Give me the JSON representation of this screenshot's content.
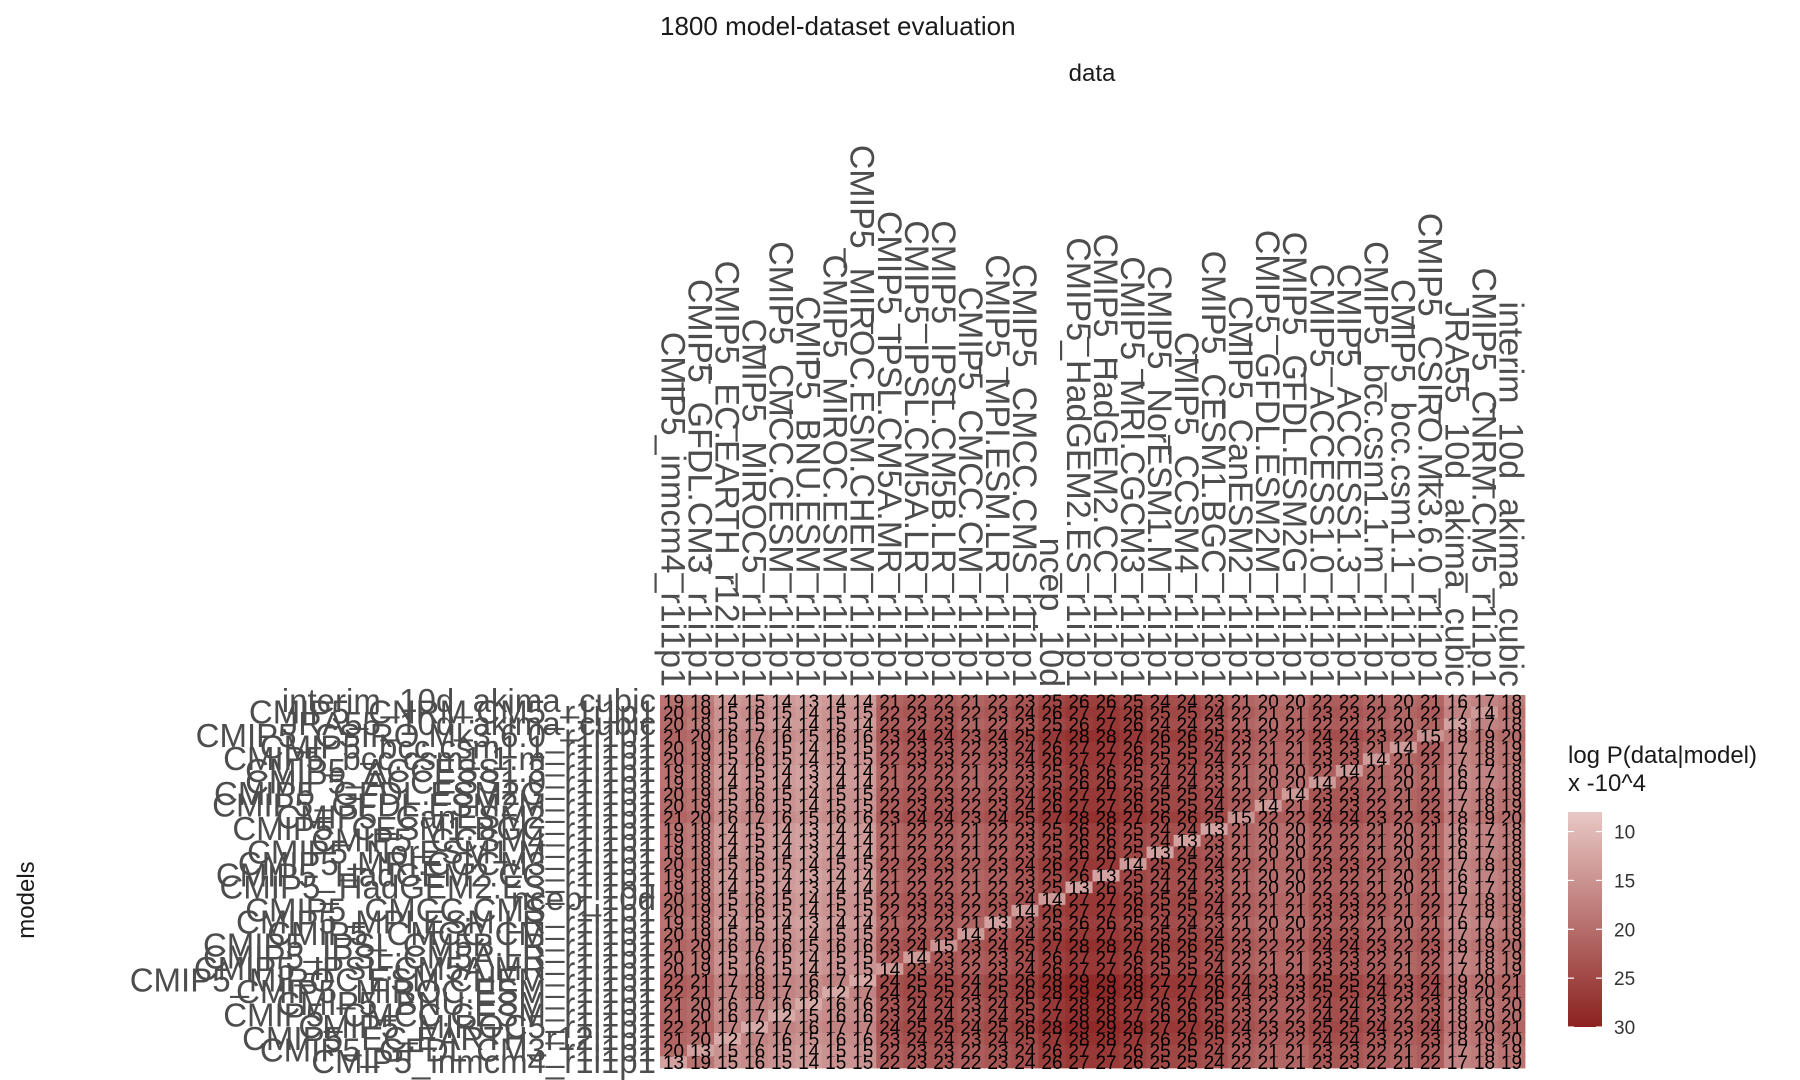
{
  "chart_data": {
    "type": "heatmap",
    "title": "1800 model-dataset evaluation",
    "xlabel": "data",
    "ylabel": "models",
    "columns": [
      "CMIP5_inmcm4_r1i1p1",
      "CMIP5_GFDL.CM3_r1i1p1",
      "CMIP5_EC.EARTH_r12i1p1",
      "CMIP5_MIROC5_r1i1p1",
      "CMIP5_CMCC.CESM_r1i1p1",
      "CMIP5_BNU.ESM_r1i1p1",
      "CMIP5_MIROC.ESM_r1i1p1",
      "CMIP5_MIROC.ESM.CHEM_r1i1p1",
      "CMIP5_IPSL.CM5A.MR_r1i1p1",
      "CMIP5_IPSL.CM5A.LR_r1i1p1",
      "CMIP5_IPSL.CM5B.LR_r1i1p1",
      "CMIP5_CMCC.CM_r1i1p1",
      "CMIP5_MPI.ESM.LR_r1i1p1",
      "CMIP5_CMCC.CMS_r1i1p1",
      "ncep_10d",
      "CMIP5_HadGEM2.ES_r1i1p1",
      "CMIP5_HadGEM2.CC_r1i1p1",
      "CMIP5_MRI.CGCM3_r1i1p1",
      "CMIP5_NorESM1.M_r1i1p1",
      "CMIP5_CCSM4_r1i1p1",
      "CMIP5_CESM1.BGC_r1i1p1",
      "CMIP5_CanESM2_r1i1p1",
      "CMIP5_GFDL.ESM2M_r1i1p1",
      "CMIP5_GFDL.ESM2G_r1i1p1",
      "CMIP5_ACCESS1.0_r1i1p1",
      "CMIP5_ACCESS1.3_r1i1p1",
      "CMIP5_bcc.csm1.1.m_r1i1p1",
      "CMIP5_bcc.csm1.1_r1i1p1",
      "CMIP5_CSIRO.Mk3.6.0_r1i1p1",
      "JRA55_10d_akima_cubic",
      "CMIP5_CNRM.CM5_r1i1p1",
      "interim_10d_akima_cubic"
    ],
    "rows": [
      "interim_10d_akima_cubic",
      "CMIP5_CNRM.CM5_r1i1p1",
      "JRA55_10d_akima_cubic",
      "CMIP5_CSIRO.Mk3.6.0_r1i1p1",
      "CMIP5_bcc.csm1.1_r1i1p1",
      "CMIP5_bcc.csm1.1.m_r1i1p1",
      "CMIP5_ACCESS1.3_r1i1p1",
      "CMIP5_ACCESS1.0_r1i1p1",
      "CMIP5_GFDL.ESM2G_r1i1p1",
      "CMIP5_GFDL.ESM2M_r1i1p1",
      "CMIP5_CanESM2_r1i1p1",
      "CMIP5_CESM1.BGC_r1i1p1",
      "CMIP5_CCSM4_r1i1p1",
      "CMIP5_NorESM1.M_r1i1p1",
      "CMIP5_MRI.CGCM3_r1i1p1",
      "CMIP5_HadGEM2.CC_r1i1p1",
      "CMIP5_HadGEM2.ES_r1i1p1",
      "ncep_10d",
      "CMIP5_CMCC.CMS_r1i1p1",
      "CMIP5_MPI.ESM.LR_r1i1p1",
      "CMIP5_CMCC.CM_r1i1p1",
      "CMIP5_IPSL.CM5B.LR_r1i1p1",
      "CMIP5_IPSL.CM5A.LR_r1i1p1",
      "CMIP5_IPSL.CM5A.MR_r1i1p1",
      "CMIP5_MIROC.ESM.CHEM_r1i1p1",
      "CMIP5_MIROC.ESM_r1i1p1",
      "CMIP5_BNU.ESM_r1i1p1",
      "CMIP5_CMCC.CESM_r1i1p1",
      "CMIP5_MIROC5_r1i1p1",
      "CMIP5_EC.EARTH_r12i1p1",
      "CMIP5_GFDL.CM3_r1i1p1",
      "CMIP5_inmcm4_r1i1p1"
    ],
    "values": [
      [
        19,
        18,
        14,
        15,
        14,
        13,
        14,
        14,
        21,
        22,
        22,
        21,
        22,
        23,
        25,
        26,
        26,
        25,
        24,
        24,
        23,
        21,
        20,
        20,
        22,
        22,
        21,
        20,
        21,
        16,
        17,
        18
      ],
      [
        20,
        19,
        15,
        16,
        15,
        14,
        15,
        15,
        22,
        23,
        23,
        22,
        23,
        24,
        26,
        27,
        27,
        26,
        25,
        25,
        24,
        22,
        21,
        21,
        23,
        23,
        22,
        21,
        22,
        17,
        14,
        19
      ],
      [
        20,
        18,
        15,
        15,
        14,
        14,
        15,
        14,
        22,
        22,
        23,
        21,
        22,
        23,
        25,
        26,
        27,
        26,
        24,
        24,
        23,
        21,
        20,
        21,
        22,
        22,
        21,
        20,
        21,
        13,
        17,
        18
      ],
      [
        21,
        20,
        16,
        17,
        16,
        15,
        16,
        16,
        23,
        24,
        24,
        23,
        24,
        25,
        27,
        28,
        28,
        27,
        26,
        26,
        25,
        23,
        22,
        22,
        24,
        24,
        23,
        22,
        15,
        18,
        19,
        20
      ],
      [
        20,
        19,
        15,
        16,
        15,
        14,
        15,
        15,
        22,
        23,
        23,
        22,
        23,
        24,
        26,
        27,
        27,
        26,
        25,
        25,
        24,
        22,
        21,
        21,
        23,
        23,
        21,
        14,
        22,
        17,
        18,
        19
      ],
      [
        20,
        19,
        15,
        16,
        15,
        14,
        15,
        15,
        22,
        23,
        23,
        22,
        23,
        24,
        26,
        27,
        27,
        26,
        25,
        25,
        24,
        22,
        21,
        21,
        23,
        23,
        14,
        21,
        22,
        17,
        18,
        19
      ],
      [
        19,
        18,
        14,
        15,
        14,
        13,
        14,
        14,
        21,
        22,
        22,
        21,
        22,
        23,
        25,
        26,
        26,
        25,
        24,
        24,
        23,
        21,
        20,
        20,
        22,
        14,
        21,
        20,
        21,
        16,
        17,
        18
      ],
      [
        19,
        18,
        14,
        15,
        14,
        13,
        14,
        14,
        21,
        22,
        22,
        21,
        22,
        23,
        25,
        26,
        26,
        25,
        24,
        24,
        23,
        21,
        20,
        20,
        14,
        22,
        21,
        20,
        21,
        16,
        17,
        18
      ],
      [
        20,
        19,
        15,
        16,
        15,
        14,
        15,
        15,
        22,
        23,
        23,
        22,
        23,
        24,
        26,
        27,
        27,
        26,
        25,
        25,
        24,
        22,
        21,
        14,
        23,
        23,
        22,
        21,
        22,
        17,
        18,
        19
      ],
      [
        20,
        19,
        15,
        16,
        15,
        14,
        15,
        15,
        22,
        23,
        23,
        22,
        23,
        24,
        26,
        27,
        27,
        26,
        25,
        25,
        24,
        22,
        14,
        21,
        23,
        23,
        22,
        21,
        22,
        17,
        18,
        19
      ],
      [
        21,
        20,
        16,
        17,
        16,
        15,
        16,
        16,
        23,
        24,
        24,
        23,
        24,
        25,
        27,
        28,
        28,
        27,
        26,
        26,
        25,
        15,
        22,
        22,
        24,
        24,
        23,
        22,
        23,
        18,
        19,
        20
      ],
      [
        19,
        18,
        14,
        15,
        14,
        13,
        14,
        14,
        21,
        22,
        22,
        21,
        22,
        23,
        25,
        26,
        26,
        25,
        24,
        24,
        13,
        21,
        20,
        20,
        22,
        22,
        21,
        20,
        21,
        16,
        17,
        18
      ],
      [
        19,
        18,
        14,
        15,
        14,
        13,
        14,
        14,
        21,
        22,
        22,
        21,
        22,
        23,
        25,
        26,
        26,
        25,
        24,
        13,
        23,
        21,
        20,
        20,
        22,
        22,
        21,
        20,
        21,
        16,
        17,
        18
      ],
      [
        19,
        18,
        14,
        15,
        14,
        13,
        14,
        14,
        21,
        22,
        22,
        21,
        22,
        23,
        25,
        26,
        26,
        25,
        13,
        24,
        23,
        21,
        20,
        20,
        22,
        22,
        21,
        20,
        21,
        16,
        17,
        18
      ],
      [
        20,
        19,
        15,
        16,
        15,
        14,
        15,
        15,
        22,
        23,
        23,
        22,
        23,
        24,
        26,
        27,
        27,
        14,
        25,
        25,
        24,
        22,
        21,
        21,
        23,
        23,
        22,
        21,
        22,
        17,
        18,
        19
      ],
      [
        19,
        18,
        14,
        15,
        14,
        13,
        14,
        14,
        21,
        22,
        22,
        21,
        22,
        23,
        25,
        26,
        13,
        25,
        24,
        24,
        23,
        21,
        20,
        20,
        22,
        22,
        21,
        20,
        21,
        16,
        17,
        18
      ],
      [
        19,
        18,
        14,
        15,
        14,
        13,
        14,
        14,
        21,
        22,
        22,
        21,
        22,
        23,
        25,
        13,
        26,
        25,
        24,
        24,
        23,
        21,
        20,
        20,
        22,
        22,
        21,
        20,
        21,
        16,
        17,
        18
      ],
      [
        20,
        19,
        15,
        16,
        15,
        14,
        15,
        15,
        22,
        23,
        23,
        22,
        23,
        24,
        14,
        27,
        27,
        26,
        25,
        25,
        24,
        22,
        21,
        21,
        23,
        23,
        22,
        21,
        22,
        17,
        18,
        19
      ],
      [
        20,
        19,
        15,
        16,
        15,
        14,
        15,
        15,
        22,
        23,
        23,
        22,
        23,
        14,
        26,
        27,
        27,
        26,
        25,
        25,
        24,
        22,
        21,
        21,
        23,
        23,
        22,
        21,
        22,
        17,
        18,
        19
      ],
      [
        19,
        18,
        14,
        15,
        14,
        13,
        14,
        14,
        21,
        22,
        22,
        21,
        13,
        23,
        25,
        26,
        26,
        25,
        24,
        24,
        23,
        21,
        20,
        20,
        22,
        22,
        21,
        20,
        21,
        16,
        17,
        18
      ],
      [
        20,
        19,
        15,
        16,
        15,
        14,
        15,
        15,
        22,
        23,
        23,
        14,
        23,
        24,
        26,
        27,
        27,
        26,
        25,
        25,
        24,
        22,
        21,
        21,
        23,
        23,
        22,
        21,
        22,
        17,
        18,
        19
      ],
      [
        21,
        20,
        16,
        17,
        16,
        15,
        16,
        16,
        23,
        24,
        15,
        23,
        24,
        25,
        27,
        28,
        28,
        27,
        26,
        26,
        25,
        23,
        22,
        22,
        24,
        24,
        23,
        22,
        23,
        18,
        19,
        20
      ],
      [
        20,
        19,
        15,
        16,
        15,
        14,
        15,
        15,
        22,
        14,
        23,
        22,
        23,
        24,
        26,
        27,
        27,
        26,
        25,
        25,
        24,
        22,
        21,
        21,
        23,
        23,
        22,
        21,
        22,
        17,
        18,
        19
      ],
      [
        20,
        19,
        15,
        16,
        15,
        14,
        15,
        15,
        14,
        23,
        23,
        22,
        23,
        24,
        26,
        27,
        27,
        26,
        25,
        25,
        24,
        22,
        21,
        21,
        23,
        23,
        22,
        21,
        22,
        17,
        18,
        19
      ],
      [
        22,
        21,
        17,
        18,
        17,
        16,
        17,
        12,
        24,
        25,
        25,
        24,
        25,
        26,
        28,
        29,
        29,
        28,
        27,
        27,
        26,
        24,
        23,
        23,
        25,
        25,
        24,
        23,
        24,
        19,
        20,
        21
      ],
      [
        22,
        21,
        17,
        18,
        17,
        16,
        12,
        17,
        24,
        25,
        25,
        24,
        25,
        26,
        28,
        29,
        29,
        28,
        27,
        27,
        26,
        24,
        23,
        23,
        25,
        25,
        24,
        23,
        24,
        19,
        20,
        21
      ],
      [
        21,
        20,
        16,
        17,
        16,
        12,
        16,
        16,
        23,
        24,
        24,
        23,
        24,
        25,
        27,
        28,
        28,
        27,
        26,
        26,
        25,
        23,
        22,
        22,
        24,
        24,
        23,
        22,
        23,
        18,
        19,
        20
      ],
      [
        21,
        20,
        16,
        17,
        12,
        15,
        16,
        16,
        23,
        24,
        24,
        23,
        24,
        25,
        27,
        28,
        28,
        27,
        26,
        26,
        25,
        23,
        22,
        22,
        24,
        24,
        23,
        22,
        23,
        18,
        19,
        20
      ],
      [
        22,
        21,
        17,
        12,
        17,
        16,
        17,
        17,
        24,
        25,
        25,
        24,
        25,
        26,
        28,
        29,
        29,
        28,
        27,
        27,
        26,
        24,
        23,
        23,
        25,
        25,
        24,
        23,
        24,
        19,
        20,
        21
      ],
      [
        21,
        20,
        12,
        17,
        16,
        15,
        16,
        16,
        23,
        24,
        24,
        23,
        24,
        25,
        27,
        28,
        28,
        27,
        26,
        26,
        25,
        23,
        22,
        22,
        24,
        24,
        23,
        22,
        23,
        18,
        19,
        20
      ],
      [
        20,
        13,
        15,
        16,
        15,
        14,
        15,
        15,
        22,
        23,
        23,
        22,
        23,
        24,
        26,
        27,
        27,
        26,
        25,
        25,
        24,
        22,
        21,
        21,
        23,
        23,
        22,
        21,
        22,
        17,
        18,
        19
      ],
      [
        13,
        19,
        15,
        16,
        15,
        14,
        15,
        15,
        22,
        23,
        23,
        22,
        23,
        24,
        26,
        27,
        27,
        26,
        25,
        25,
        24,
        22,
        21,
        21,
        23,
        23,
        22,
        21,
        22,
        17,
        18,
        19
      ]
    ],
    "color_scale": {
      "title": [
        "log P(data|model)",
        "x -10^4"
      ],
      "low_color": "#e8c8c5",
      "high_color": "#8b2220",
      "range": [
        8,
        30
      ],
      "ticks": [
        10,
        15,
        20,
        25,
        30
      ]
    }
  }
}
